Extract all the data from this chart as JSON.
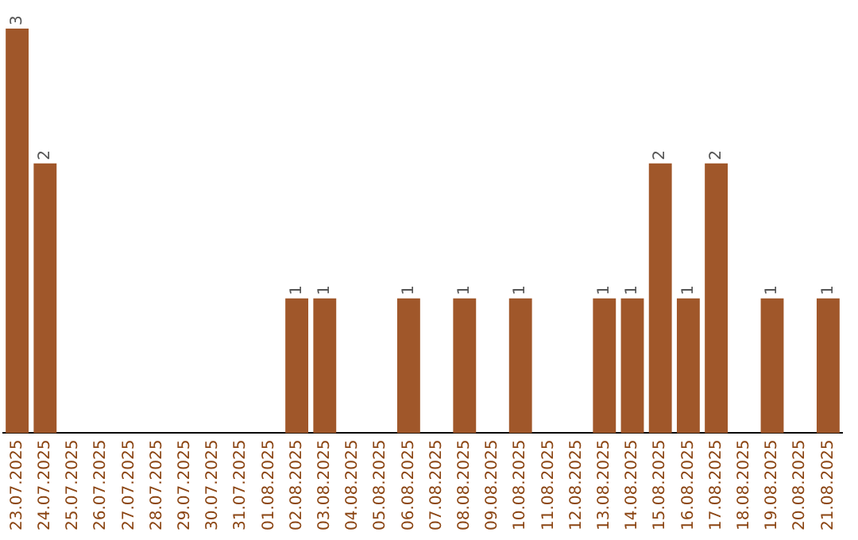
{
  "chart_data": {
    "type": "bar",
    "categories": [
      "23.07.2025",
      "24.07.2025",
      "25.07.2025",
      "26.07.2025",
      "27.07.2025",
      "28.07.2025",
      "29.07.2025",
      "30.07.2025",
      "31.07.2025",
      "01.08.2025",
      "02.08.2025",
      "03.08.2025",
      "04.08.2025",
      "05.08.2025",
      "06.08.2025",
      "07.08.2025",
      "08.08.2025",
      "09.08.2025",
      "10.08.2025",
      "11.08.2025",
      "12.08.2025",
      "13.08.2025",
      "14.08.2025",
      "15.08.2025",
      "16.08.2025",
      "17.08.2025",
      "18.08.2025",
      "19.08.2025",
      "20.08.2025",
      "21.08.2025"
    ],
    "values": [
      3,
      2,
      0,
      0,
      0,
      0,
      0,
      0,
      0,
      0,
      1,
      1,
      0,
      0,
      1,
      0,
      1,
      0,
      1,
      0,
      0,
      1,
      1,
      2,
      1,
      2,
      0,
      1,
      0,
      1
    ],
    "value_labels": [
      "3",
      "2",
      null,
      null,
      null,
      null,
      null,
      null,
      null,
      null,
      "1",
      "1",
      null,
      null,
      "1",
      null,
      "1",
      null,
      "1",
      null,
      null,
      "1",
      "1",
      "2",
      "1",
      "2",
      null,
      "1",
      null,
      "1"
    ],
    "color": "#a0572a",
    "grid": false,
    "legend": false
  }
}
